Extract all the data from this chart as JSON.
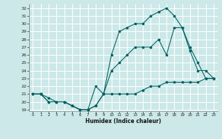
{
  "title": "",
  "xlabel": "Humidex (Indice chaleur)",
  "bg_color": "#cce8e8",
  "grid_color": "#ffffff",
  "line_color": "#006060",
  "xlim": [
    -0.5,
    23.5
  ],
  "ylim": [
    19,
    32.5
  ],
  "xticks": [
    0,
    1,
    2,
    3,
    4,
    5,
    6,
    7,
    8,
    9,
    10,
    11,
    12,
    13,
    14,
    15,
    16,
    17,
    18,
    19,
    20,
    21,
    22,
    23
  ],
  "yticks": [
    19,
    20,
    21,
    22,
    23,
    24,
    25,
    26,
    27,
    28,
    29,
    30,
    31,
    32
  ],
  "line1_x": [
    0,
    1,
    2,
    3,
    4,
    5,
    6,
    7,
    8,
    9,
    10,
    11,
    12,
    13,
    14,
    15,
    16,
    17,
    18,
    19,
    20,
    21,
    22,
    23
  ],
  "line1_y": [
    21,
    21,
    20,
    20,
    20,
    19.5,
    19,
    19,
    19.5,
    21,
    21,
    21,
    21,
    21,
    21.5,
    22,
    22,
    22.5,
    22.5,
    22.5,
    22.5,
    22.5,
    23,
    23
  ],
  "line2_x": [
    0,
    1,
    2,
    3,
    4,
    5,
    6,
    7,
    8,
    9,
    10,
    11,
    12,
    13,
    14,
    15,
    16,
    17,
    18,
    19,
    20,
    21,
    22,
    23
  ],
  "line2_y": [
    21,
    21,
    20,
    20,
    20,
    19.5,
    19,
    19,
    22,
    21,
    24,
    25,
    26,
    27,
    27,
    27,
    28,
    26,
    29.5,
    29.5,
    26.5,
    24,
    24,
    23
  ],
  "line3_x": [
    0,
    1,
    2,
    3,
    4,
    5,
    6,
    7,
    8,
    9,
    10,
    11,
    12,
    13,
    14,
    15,
    16,
    17,
    18,
    19,
    20,
    21,
    22,
    23
  ],
  "line3_y": [
    21,
    21,
    20.5,
    20,
    20,
    19.5,
    19,
    19,
    19.5,
    21,
    26,
    29,
    29.5,
    30,
    30,
    31,
    31.5,
    32,
    31,
    29.5,
    27,
    25,
    23,
    23
  ]
}
